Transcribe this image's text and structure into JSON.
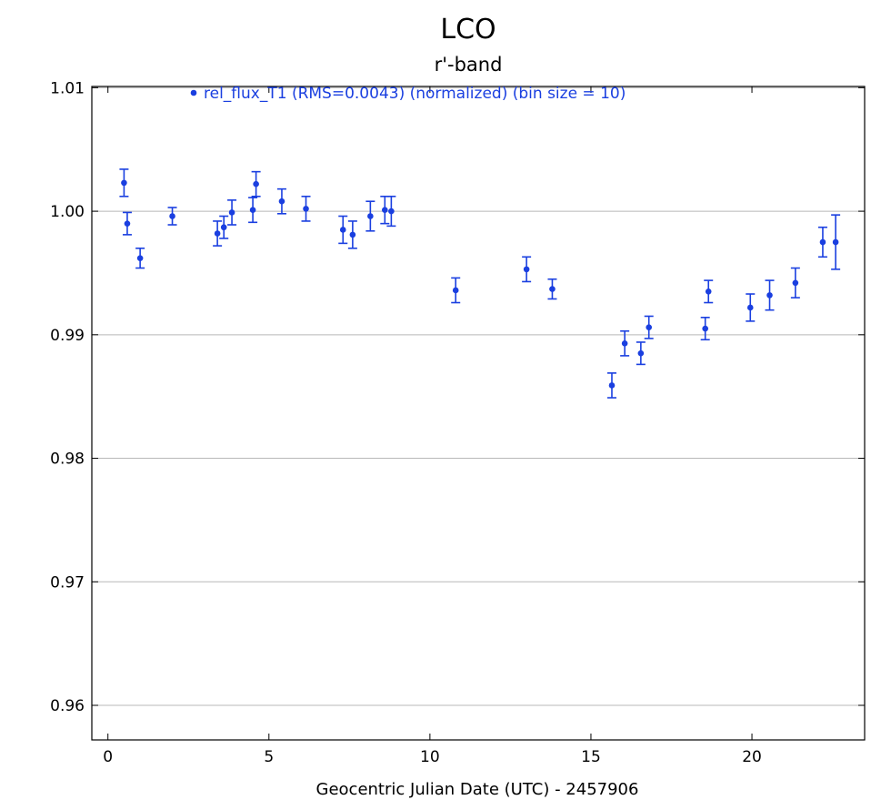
{
  "chart_data": {
    "type": "scatter",
    "title": "LCO",
    "subtitle": "r'-band",
    "xlabel": "Geocentric Julian Date (UTC) - 2457906",
    "ylabel": "",
    "xlim": [
      -0.5,
      23.5
    ],
    "ylim": [
      0.9572,
      1.0101
    ],
    "xticks": [
      0,
      5,
      10,
      15,
      20
    ],
    "xtick_labels": [
      "0",
      "5",
      "10",
      "15",
      "20"
    ],
    "yticks": [
      0.96,
      0.97,
      0.98,
      0.99,
      1.0,
      1.01
    ],
    "ytick_labels": [
      "0.96",
      "0.97",
      "0.98",
      "0.99",
      "1.00",
      "1.01"
    ],
    "grid": "horizontal",
    "legend_position": "top",
    "colors": {
      "series": "#1a3fe0",
      "grid": "#b8b8b8",
      "axis": "#000000"
    },
    "series": [
      {
        "name": "rel_flux_T1 (RMS=0.0043) (normalized) (bin size = 10)",
        "points": [
          {
            "x": 0.5,
            "y": 1.0023,
            "err": 0.0011
          },
          {
            "x": 0.6,
            "y": 0.999,
            "err": 0.0009
          },
          {
            "x": 1.0,
            "y": 0.9962,
            "err": 0.0008
          },
          {
            "x": 2.0,
            "y": 0.9996,
            "err": 0.0007
          },
          {
            "x": 3.4,
            "y": 0.9982,
            "err": 0.001
          },
          {
            "x": 3.6,
            "y": 0.9987,
            "err": 0.0009
          },
          {
            "x": 3.85,
            "y": 0.9999,
            "err": 0.001
          },
          {
            "x": 4.5,
            "y": 1.0001,
            "err": 0.001
          },
          {
            "x": 4.6,
            "y": 1.0022,
            "err": 0.001
          },
          {
            "x": 5.4,
            "y": 1.0008,
            "err": 0.001
          },
          {
            "x": 6.15,
            "y": 1.0002,
            "err": 0.001
          },
          {
            "x": 7.3,
            "y": 0.9985,
            "err": 0.0011
          },
          {
            "x": 7.6,
            "y": 0.9981,
            "err": 0.0011
          },
          {
            "x": 8.15,
            "y": 0.9996,
            "err": 0.0012
          },
          {
            "x": 8.6,
            "y": 1.0001,
            "err": 0.0011
          },
          {
            "x": 8.8,
            "y": 1.0,
            "err": 0.0012
          },
          {
            "x": 10.8,
            "y": 0.9936,
            "err": 0.001
          },
          {
            "x": 13.0,
            "y": 0.9953,
            "err": 0.001
          },
          {
            "x": 13.8,
            "y": 0.9937,
            "err": 0.0008
          },
          {
            "x": 15.65,
            "y": 0.9859,
            "err": 0.001
          },
          {
            "x": 16.05,
            "y": 0.9893,
            "err": 0.001
          },
          {
            "x": 16.55,
            "y": 0.9885,
            "err": 0.0009
          },
          {
            "x": 16.8,
            "y": 0.9906,
            "err": 0.0009
          },
          {
            "x": 18.55,
            "y": 0.9905,
            "err": 0.0009
          },
          {
            "x": 18.65,
            "y": 0.9935,
            "err": 0.0009
          },
          {
            "x": 19.95,
            "y": 0.9922,
            "err": 0.0011
          },
          {
            "x": 20.55,
            "y": 0.9932,
            "err": 0.0012
          },
          {
            "x": 21.35,
            "y": 0.9942,
            "err": 0.0012
          },
          {
            "x": 22.2,
            "y": 0.9975,
            "err": 0.0012
          },
          {
            "x": 22.6,
            "y": 0.9975,
            "err": 0.0022
          }
        ]
      }
    ]
  }
}
